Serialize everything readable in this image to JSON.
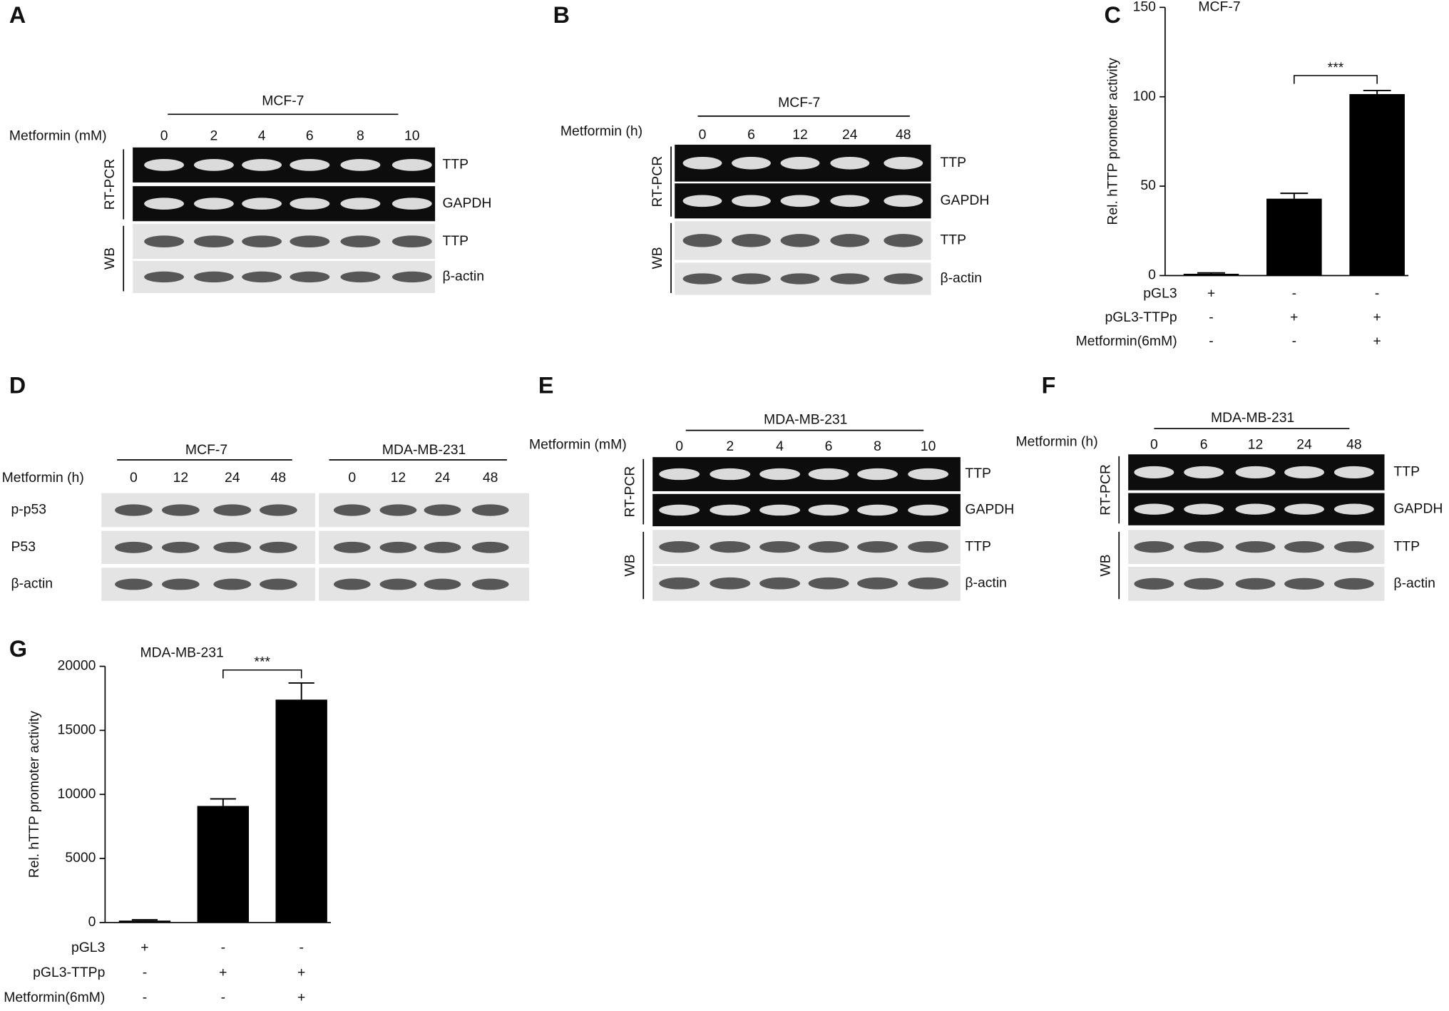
{
  "blots": [
    {
      "label": "A",
      "treatment": "Metformin (mM)",
      "sets": [
        {
          "cell_line": "MCF-7",
          "lanes": [
            0,
            2,
            4,
            6,
            8,
            10
          ]
        }
      ],
      "groups": [
        {
          "name": "RT-PCR",
          "bands": [
            "TTP",
            "GAPDH"
          ]
        },
        {
          "name": "WB",
          "bands": [
            "TTP",
            "β-actin"
          ]
        }
      ]
    },
    {
      "label": "B",
      "treatment": "Metformin (h)",
      "sets": [
        {
          "cell_line": "MCF-7",
          "lanes": [
            0,
            6,
            12,
            24,
            48
          ]
        }
      ],
      "groups": [
        {
          "name": "RT-PCR",
          "bands": [
            "TTP",
            "GAPDH"
          ]
        },
        {
          "name": "WB",
          "bands": [
            "TTP",
            "β-actin"
          ]
        }
      ]
    },
    {
      "label": "D",
      "treatment": "Metformin (h)",
      "sets": [
        {
          "cell_line": "MCF-7",
          "lanes": [
            0,
            12,
            24,
            48
          ]
        },
        {
          "cell_line": "MDA-MB-231",
          "lanes": [
            0,
            12,
            24,
            48
          ]
        }
      ],
      "groups": [
        {
          "name": null,
          "bands": [
            "p-p53",
            "P53",
            "β-actin"
          ]
        }
      ]
    },
    {
      "label": "E",
      "treatment": "Metformin (mM)",
      "sets": [
        {
          "cell_line": "MDA-MB-231",
          "lanes": [
            0,
            2,
            4,
            6,
            8,
            10
          ]
        }
      ],
      "groups": [
        {
          "name": "RT-PCR",
          "bands": [
            "TTP",
            "GAPDH"
          ]
        },
        {
          "name": "WB",
          "bands": [
            "TTP",
            "β-actin"
          ]
        }
      ]
    },
    {
      "label": "F",
      "treatment": "Metformin (h)",
      "sets": [
        {
          "cell_line": "MDA-MB-231",
          "lanes": [
            0,
            6,
            12,
            24,
            48
          ]
        }
      ],
      "groups": [
        {
          "name": "RT-PCR",
          "bands": [
            "TTP",
            "GAPDH"
          ]
        },
        {
          "name": "WB",
          "bands": [
            "TTP",
            "β-actin"
          ]
        }
      ]
    }
  ],
  "chart_data": [
    {
      "type": "bar",
      "panel": "C",
      "title": "MCF-7",
      "y_label": "Rel. hTTP promoter activity",
      "categories": [
        null,
        null,
        null
      ],
      "values": [
        1,
        43,
        101.5
      ],
      "errors": [
        0.5,
        3,
        2
      ],
      "color": "#000000",
      "ylim": [
        0,
        150
      ],
      "yticks": [
        0,
        50,
        100,
        150
      ],
      "annotations": [
        "***"
      ],
      "conditions": [
        {
          "name": "pGL3",
          "signs": [
            "+",
            "-",
            "-"
          ]
        },
        {
          "name": "pGL3-TTPp",
          "signs": [
            "-",
            "+",
            "+"
          ]
        },
        {
          "name": "Metformin(6mM)",
          "signs": [
            "-",
            "-",
            "+"
          ]
        }
      ]
    },
    {
      "type": "bar",
      "panel": "G",
      "title": "MDA-MB-231",
      "y_label": "Rel. hTTP promoter activity",
      "categories": [
        null,
        null,
        null
      ],
      "values": [
        150,
        9100,
        17400
      ],
      "errors": [
        60,
        550,
        1300
      ],
      "color": "#000000",
      "ylim": [
        0,
        20000
      ],
      "yticks": [
        0,
        5000,
        10000,
        15000,
        20000
      ],
      "annotations": [
        "***"
      ],
      "conditions": [
        {
          "name": "pGL3",
          "signs": [
            "+",
            "-",
            "-"
          ]
        },
        {
          "name": "pGL3-TTPp",
          "signs": [
            "-",
            "+",
            "+"
          ]
        },
        {
          "name": "Metformin(6mM)",
          "signs": [
            "-",
            "-",
            "+"
          ]
        }
      ]
    }
  ]
}
